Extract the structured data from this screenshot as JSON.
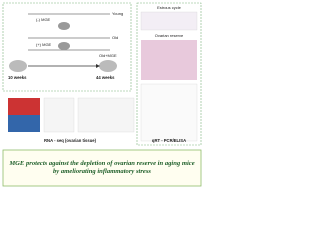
{
  "design": {
    "groups": [
      {
        "label": "Young",
        "treatment": "(-) MGE"
      },
      {
        "label": "Old"
      },
      {
        "label": "Old+MGE",
        "treatment": "(+) MGE"
      }
    ],
    "timeline": {
      "start": "10 weeks",
      "end": "44 weeks"
    }
  },
  "panels": {
    "estrous": "Estrous cycle",
    "reserve": "Ovarian reserve",
    "rnaseq": "RNA - seq (ovarian tissue)",
    "qpcr": "qRT - PCR/ELISA"
  },
  "conclusion": "MGE protects against the depletion of ovarian reserve in aging mice by ameliorating inflammatory stress"
}
